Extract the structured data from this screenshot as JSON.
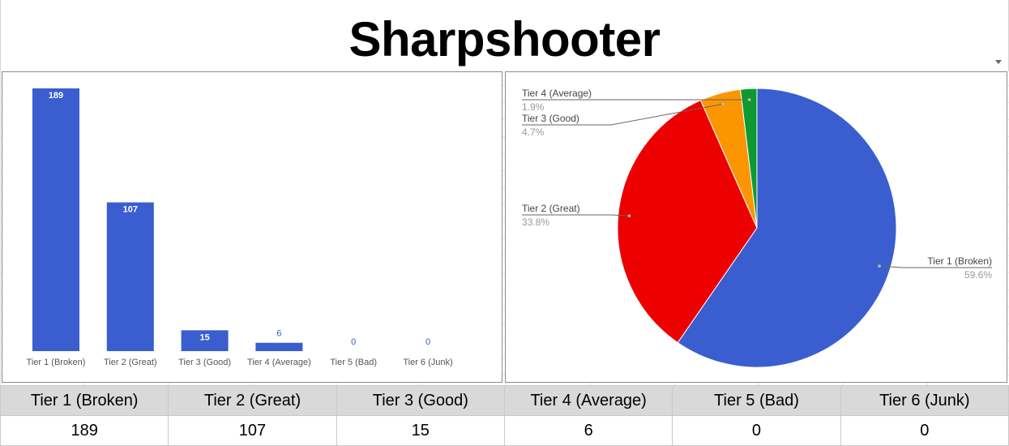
{
  "page": {
    "title": "Sharpshooter"
  },
  "table": {
    "headers": [
      "Tier 1 (Broken)",
      "Tier 2 (Great)",
      "Tier 3 (Good)",
      "Tier 4 (Average)",
      "Tier 5 (Bad)",
      "Tier 6 (Junk)"
    ],
    "values": [
      "189",
      "107",
      "15",
      "6",
      "0",
      "0"
    ]
  },
  "chart_data": [
    {
      "type": "bar",
      "categories": [
        "Tier 1 (Broken)",
        "Tier 2 (Great)",
        "Tier 3 (Good)",
        "Tier 4 (Average)",
        "Tier 5 (Bad)",
        "Tier 6 (Junk)"
      ],
      "values": [
        189,
        107,
        15,
        6,
        0,
        0
      ],
      "data_labels": [
        "189",
        "107",
        "15",
        "6",
        "0",
        "0"
      ],
      "title": "",
      "xlabel": "",
      "ylabel": "",
      "ylim": [
        0,
        189
      ],
      "grid": false,
      "legend": "none",
      "color": "#3a5ed0"
    },
    {
      "type": "pie",
      "categories": [
        "Tier 1 (Broken)",
        "Tier 2 (Great)",
        "Tier 3 (Good)",
        "Tier 4 (Average)"
      ],
      "values": [
        189,
        107,
        15,
        6
      ],
      "percent_labels": [
        "59.6%",
        "33.8%",
        "4.7%",
        "1.9%"
      ],
      "colors": [
        "#3a5ed0",
        "#ec0000",
        "#fb9600",
        "#0f9a31"
      ],
      "title": "",
      "legend": "labeled-slices"
    }
  ]
}
